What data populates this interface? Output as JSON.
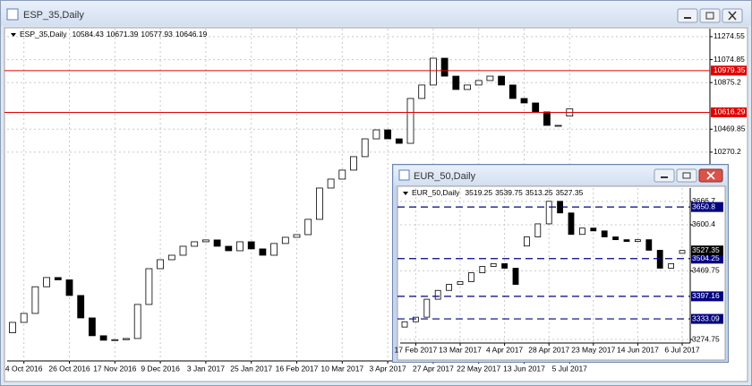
{
  "windows": [
    {
      "title": "ESP_35,Daily",
      "header": [
        10584.43,
        10671.39,
        10577.93,
        10646.19
      ],
      "chart_data": {
        "type": "candlestick",
        "categories": [
          null,
          "4 Oct 2016",
          null,
          null,
          null,
          "26 Oct 2016",
          null,
          null,
          null,
          "17 Nov 2016",
          null,
          null,
          null,
          "9 Dec 2016",
          null,
          null,
          null,
          "3 Jan 2017",
          null,
          null,
          null,
          "25 Jan 2017",
          null,
          null,
          null,
          "16 Feb 2017",
          null,
          null,
          null,
          "10 Mar 2017",
          null,
          null,
          null,
          "3 Apr 2017",
          null,
          null,
          null,
          "27 Apr 2017",
          null,
          null,
          null,
          "22 May 2017",
          null,
          null,
          null,
          "13 Jun 2017",
          null,
          null,
          null,
          "5 Jul 2017"
        ],
        "open": [
          8700,
          8790,
          8868,
          9100,
          9180,
          9160,
          9024,
          8829,
          8674,
          8635,
          8640,
          8650,
          8946,
          9257,
          9335,
          9374,
          9452,
          9491,
          9507,
          9452,
          9413,
          9491,
          9429,
          9374,
          9476,
          9530,
          9553,
          9686,
          9958,
          10036,
          10114,
          10231,
          10386,
          10464,
          10386,
          10347,
          10737,
          10854,
          11087,
          10931,
          10815,
          10854,
          10893,
          10931,
          10854,
          10737,
          10698,
          10620,
          10503,
          10584
        ],
        "close": [
          8790,
          8868,
          9100,
          9180,
          9160,
          9024,
          8829,
          8674,
          8635,
          8640,
          8650,
          8946,
          9257,
          9335,
          9374,
          9452,
          9491,
          9507,
          9452,
          9413,
          9491,
          9429,
          9374,
          9476,
          9530,
          9553,
          9686,
          9958,
          10036,
          10114,
          10231,
          10386,
          10464,
          10386,
          10347,
          10737,
          10854,
          11087,
          10931,
          10815,
          10854,
          10893,
          10931,
          10854,
          10737,
          10698,
          10620,
          10503,
          10503,
          10646
        ],
        "ylim": [
          8455,
          11344
        ],
        "yticks": [
          11274.55,
          11074.85,
          10875.2,
          10469.85,
          10270.2
        ],
        "levels": [
          10979.35,
          10616.29
        ],
        "level_color": "#e00000",
        "grid": true
      }
    },
    {
      "title": "EUR_50,Daily",
      "header": [
        3519.25,
        3539.75,
        3513.25,
        3527.35
      ],
      "chart_data": {
        "type": "candlestick",
        "categories": [
          null,
          "17 Feb 2017",
          null,
          null,
          null,
          "13 Mar 2017",
          null,
          null,
          null,
          "4 Apr 2017",
          null,
          null,
          null,
          "28 Apr 2017",
          null,
          null,
          null,
          "23 May 2017",
          null,
          null,
          null,
          "14 Jun 2017",
          null,
          null,
          null,
          "6 Jul 2017"
        ],
        "open": [
          3310,
          3325,
          3338,
          3389,
          3414,
          3431,
          3439,
          3464,
          3482,
          3490,
          3477,
          3540,
          3566,
          3603,
          3667,
          3634,
          3573,
          3591,
          3583,
          3566,
          3558,
          3553,
          3558,
          3528,
          3477,
          3519.25
        ],
        "close": [
          3325,
          3338,
          3389,
          3414,
          3431,
          3439,
          3464,
          3482,
          3490,
          3477,
          3431,
          3566,
          3603,
          3667,
          3634,
          3573,
          3591,
          3583,
          3566,
          3558,
          3553,
          3558,
          3528,
          3477,
          3490,
          3527.35
        ],
        "ylim": [
          3264.6,
          3704.6
        ],
        "yticks": [
          3666.7,
          3600.4,
          3469.75,
          3274.75
        ],
        "levels": [
          3650.8,
          3504.25,
          3397.16,
          3333.09
        ],
        "level_color": "#000080",
        "last_label": 3527.35,
        "grid": true
      }
    }
  ]
}
